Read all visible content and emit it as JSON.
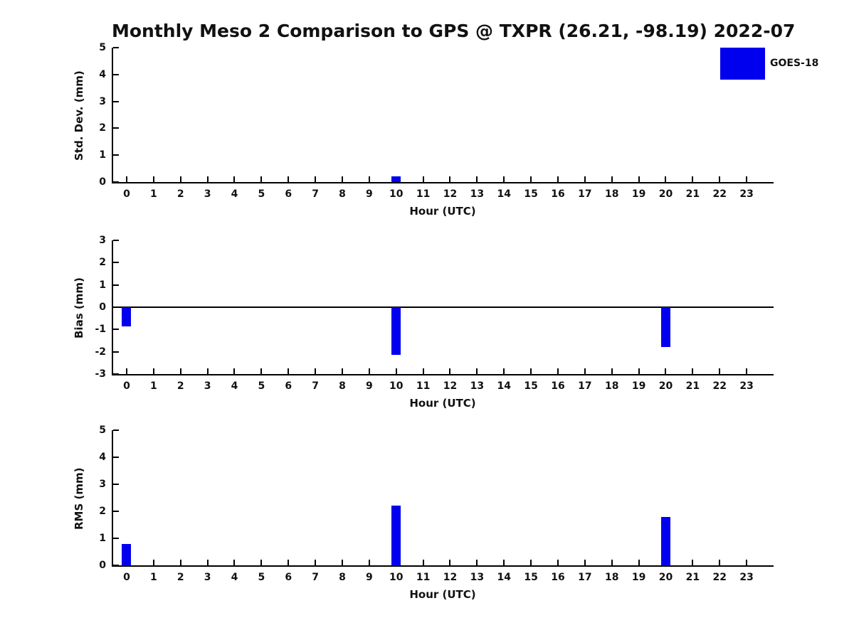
{
  "title": "Monthly Meso 2 Comparison to GPS @ TXPR (26.21, -98.19) 2022-07",
  "legend": {
    "label": "GOES-18",
    "swatch_color": "#0000EE"
  },
  "colors": {
    "bar": "#0000EE",
    "axis": "#000000",
    "text": "#111111"
  },
  "chart_data": [
    {
      "type": "bar",
      "id": "std-dev",
      "ylabel": "Std. Dev. (mm)",
      "xlabel": "Hour (UTC)",
      "categories": [
        0,
        1,
        2,
        3,
        4,
        5,
        6,
        7,
        8,
        9,
        10,
        11,
        12,
        13,
        14,
        15,
        16,
        17,
        18,
        19,
        20,
        21,
        22,
        23
      ],
      "series": [
        {
          "name": "GOES-18",
          "values": [
            null,
            null,
            null,
            null,
            null,
            null,
            null,
            null,
            null,
            null,
            0.2,
            null,
            null,
            null,
            null,
            null,
            null,
            null,
            null,
            null,
            null,
            null,
            null,
            null
          ]
        }
      ],
      "ylim": [
        0,
        5
      ],
      "yticks": [
        0,
        1,
        2,
        3,
        4,
        5
      ],
      "xlim": [
        -0.5,
        24
      ],
      "grid": false,
      "zero_line": false,
      "legend_position": "top-right-outside"
    },
    {
      "type": "bar",
      "id": "bias",
      "ylabel": "Bias (mm)",
      "xlabel": "Hour (UTC)",
      "categories": [
        0,
        1,
        2,
        3,
        4,
        5,
        6,
        7,
        8,
        9,
        10,
        11,
        12,
        13,
        14,
        15,
        16,
        17,
        18,
        19,
        20,
        21,
        22,
        23
      ],
      "series": [
        {
          "name": "GOES-18",
          "values": [
            -0.85,
            null,
            null,
            null,
            null,
            null,
            null,
            null,
            null,
            null,
            -2.15,
            null,
            null,
            null,
            null,
            null,
            null,
            null,
            null,
            null,
            -1.8,
            null,
            null,
            null
          ]
        }
      ],
      "ylim": [
        -3,
        3
      ],
      "yticks": [
        -3,
        -2,
        -1,
        0,
        1,
        2,
        3
      ],
      "xlim": [
        -0.5,
        24
      ],
      "grid": false,
      "zero_line": true,
      "legend_position": "none"
    },
    {
      "type": "bar",
      "id": "rms",
      "ylabel": "RMS (mm)",
      "xlabel": "Hour (UTC)",
      "categories": [
        0,
        1,
        2,
        3,
        4,
        5,
        6,
        7,
        8,
        9,
        10,
        11,
        12,
        13,
        14,
        15,
        16,
        17,
        18,
        19,
        20,
        21,
        22,
        23
      ],
      "series": [
        {
          "name": "GOES-18",
          "values": [
            0.8,
            null,
            null,
            null,
            null,
            null,
            null,
            null,
            null,
            null,
            2.2,
            null,
            null,
            null,
            null,
            null,
            null,
            null,
            null,
            null,
            1.8,
            null,
            null,
            null
          ]
        }
      ],
      "ylim": [
        0,
        5
      ],
      "yticks": [
        0,
        1,
        2,
        3,
        4,
        5
      ],
      "xlim": [
        -0.5,
        24
      ],
      "grid": false,
      "zero_line": false,
      "legend_position": "none"
    }
  ]
}
